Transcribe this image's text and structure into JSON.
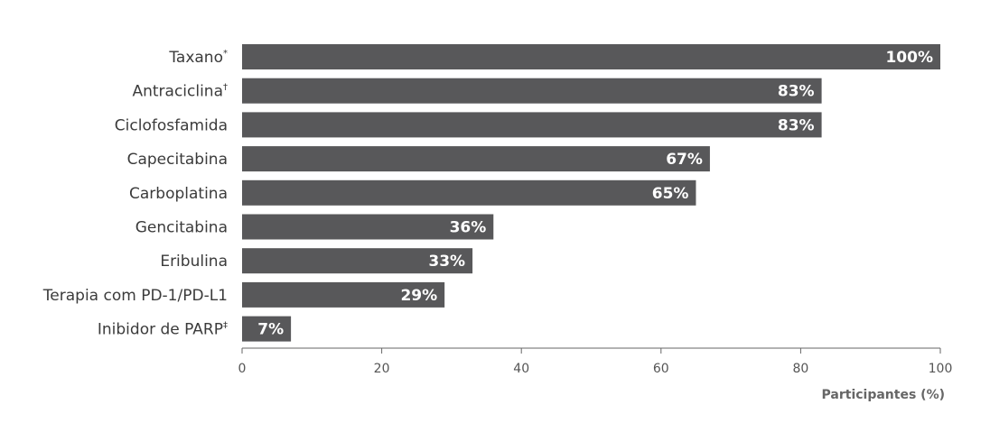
{
  "chart_data": {
    "type": "bar",
    "orientation": "horizontal",
    "categories": [
      {
        "label": "Taxano",
        "mark": "*"
      },
      {
        "label": "Antraciclina",
        "mark": "†"
      },
      {
        "label": "Ciclofosfamida",
        "mark": ""
      },
      {
        "label": "Capecitabina",
        "mark": ""
      },
      {
        "label": "Carboplatina",
        "mark": ""
      },
      {
        "label": "Gencitabina",
        "mark": ""
      },
      {
        "label": "Eribulina",
        "mark": ""
      },
      {
        "label": "Terapia com PD-1/PD-L1",
        "mark": ""
      },
      {
        "label": "Inibidor de PARP",
        "mark": "‡"
      }
    ],
    "values": [
      100,
      83,
      83,
      67,
      65,
      36,
      33,
      29,
      7
    ],
    "value_labels": [
      "100%",
      "83%",
      "83%",
      "67%",
      "65%",
      "36%",
      "33%",
      "29%",
      "7%"
    ],
    "xlabel": "Participantes (%)",
    "xlim": [
      0,
      100
    ],
    "xticks": [
      0,
      20,
      40,
      60,
      80,
      100
    ],
    "bar_color": "#58585a",
    "axis_color": "#666666",
    "grid": false,
    "legend": false
  }
}
